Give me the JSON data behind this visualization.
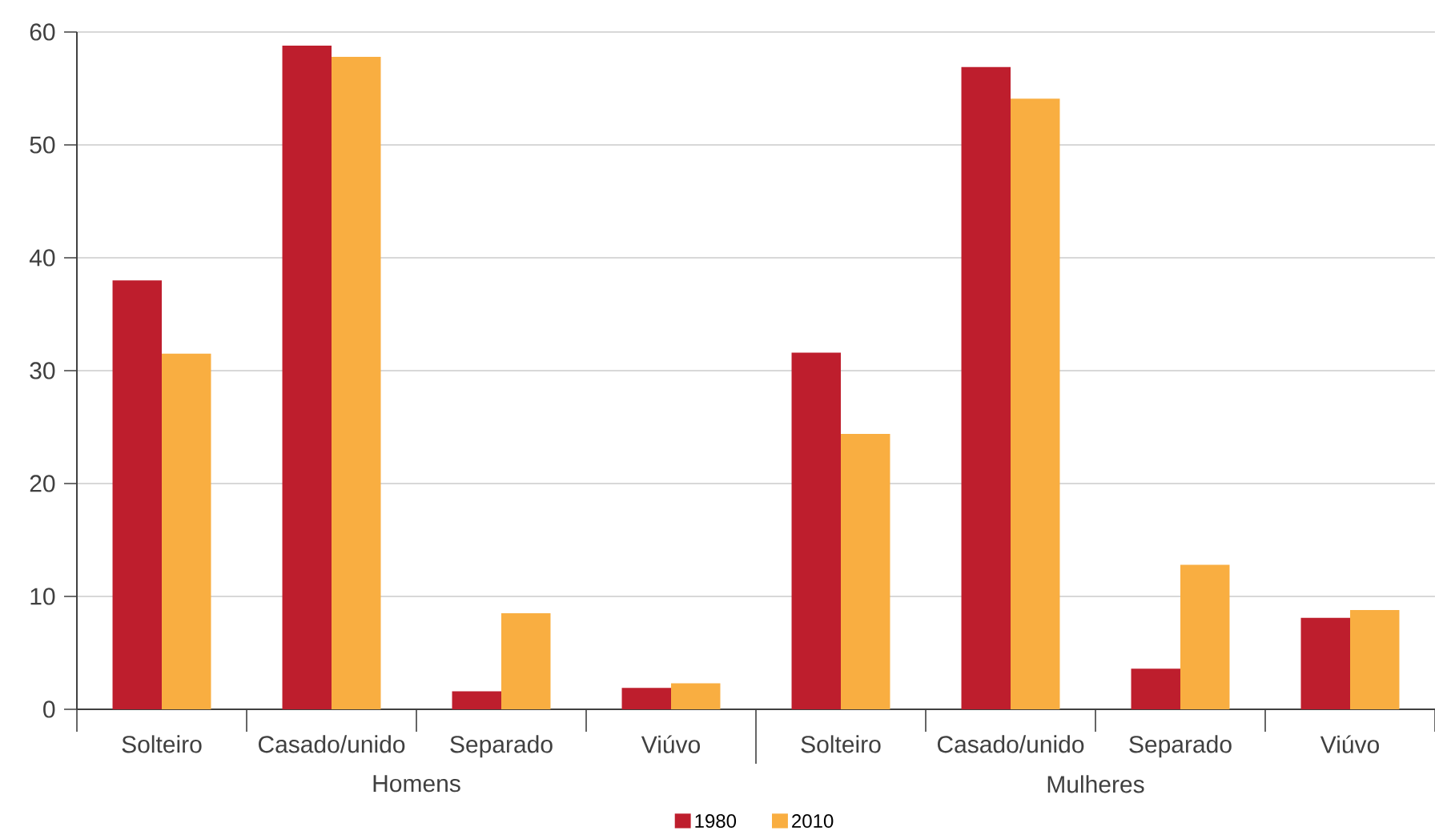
{
  "chart_data": {
    "type": "bar",
    "categories": [
      "Solteiro",
      "Casado/unido",
      "Separado",
      "Viúvo",
      "Solteiro",
      "Casado/unido",
      "Separado",
      "Viúvo"
    ],
    "series": [
      {
        "name": "1980",
        "color": "#be1e2d",
        "values": [
          38.0,
          58.8,
          1.6,
          1.9,
          31.6,
          56.9,
          3.6,
          8.1
        ]
      },
      {
        "name": "2010",
        "color": "#f9ae41",
        "values": [
          31.5,
          57.8,
          8.5,
          2.3,
          24.4,
          54.1,
          12.8,
          8.8
        ]
      }
    ],
    "ylim": [
      0,
      60
    ],
    "yticks": [
      0,
      10,
      20,
      30,
      40,
      50,
      60
    ],
    "grid": "y",
    "legend": "bottom",
    "annotations": [
      "Homens",
      "Mulheres"
    ]
  }
}
